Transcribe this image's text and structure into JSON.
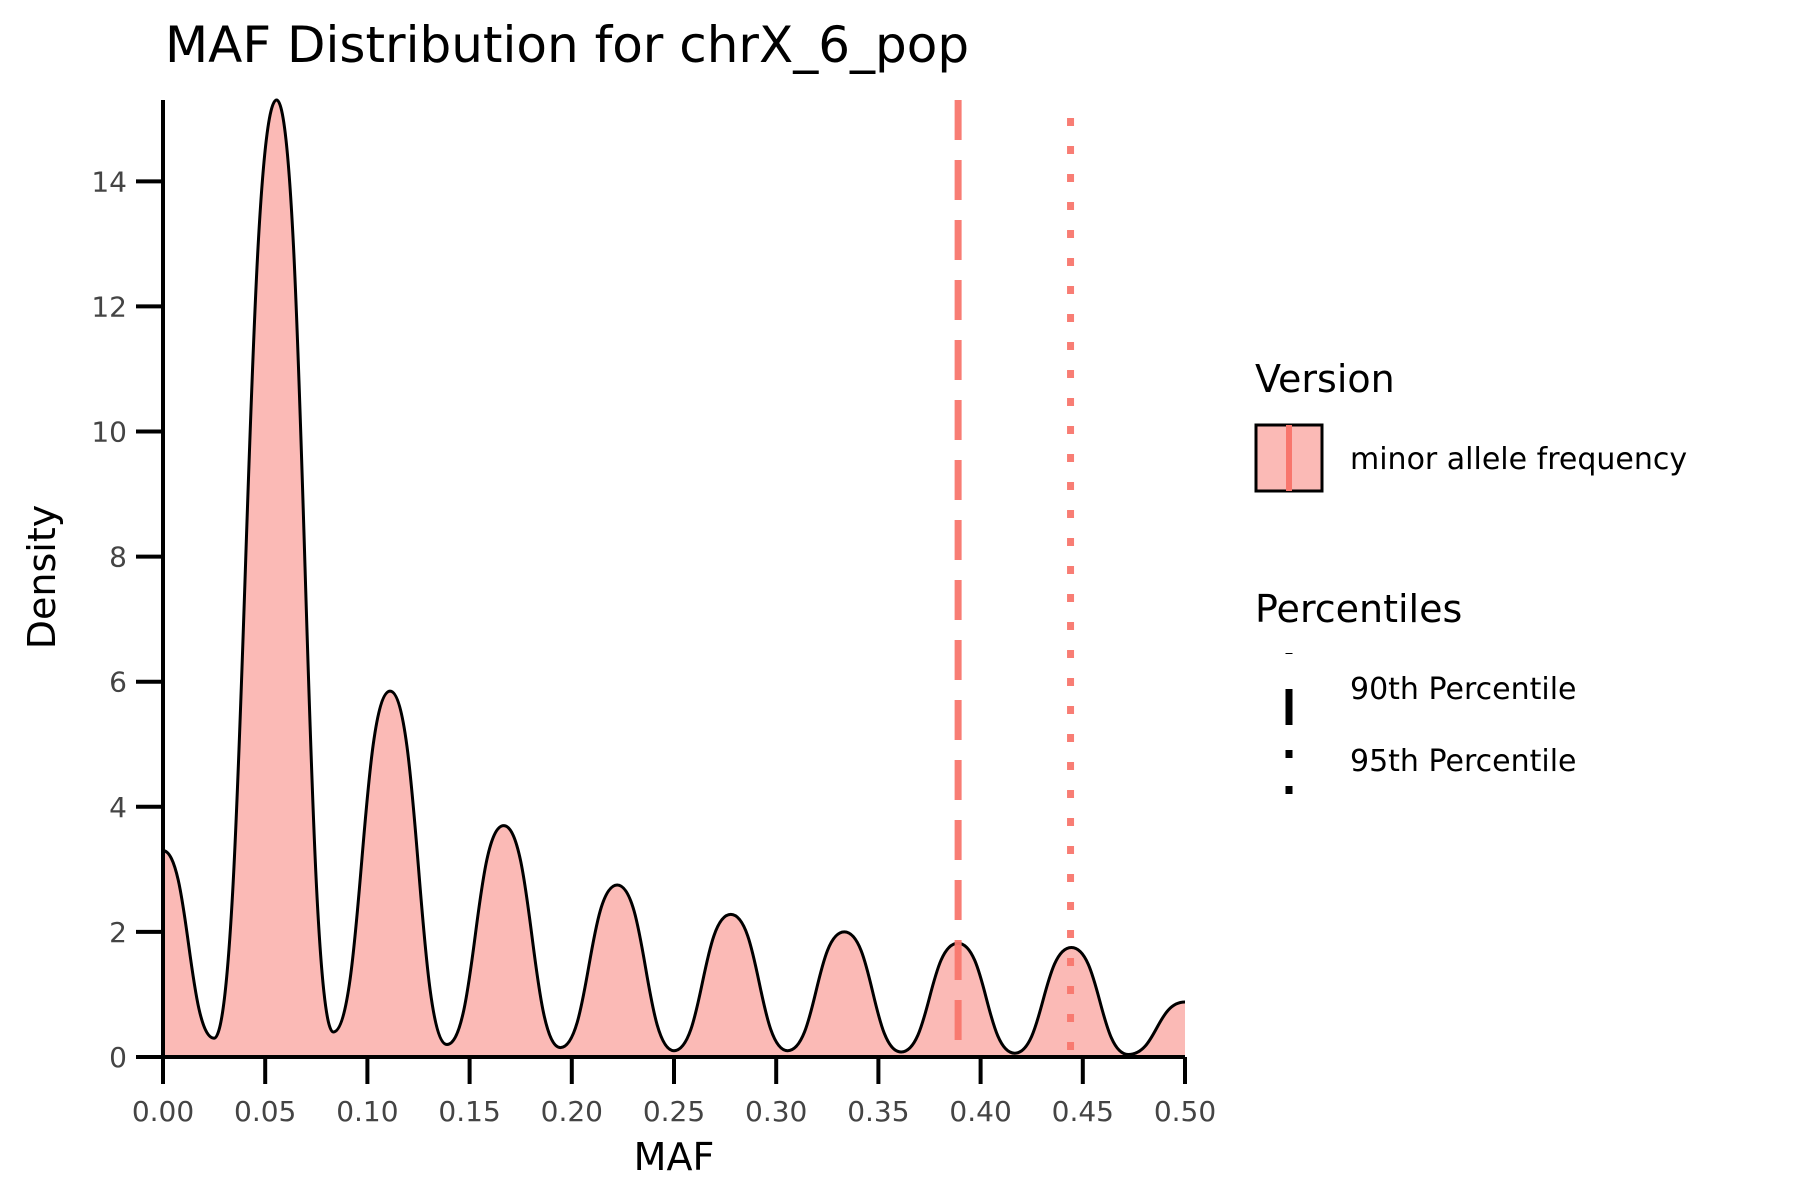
{
  "chart_data": {
    "type": "area",
    "title": "MAF Distribution for chrX_6_pop",
    "xlabel": "MAF",
    "ylabel": "Density",
    "xlim": [
      0,
      0.5
    ],
    "ylim": [
      0,
      15.3
    ],
    "x_ticks": [
      "0.00",
      "0.05",
      "0.10",
      "0.15",
      "0.20",
      "0.25",
      "0.30",
      "0.35",
      "0.40",
      "0.45",
      "0.50"
    ],
    "y_ticks": [
      "0",
      "2",
      "4",
      "6",
      "8",
      "10",
      "12",
      "14"
    ],
    "grid": false,
    "fill_color": "#F8766D",
    "line_color": "#000000",
    "series": [
      {
        "name": "minor allele frequency",
        "x": [
          0.0,
          0.025,
          0.0556,
          0.0833,
          0.1111,
          0.1389,
          0.1667,
          0.1944,
          0.2222,
          0.25,
          0.2778,
          0.3056,
          0.3333,
          0.3611,
          0.3889,
          0.4167,
          0.4444,
          0.4722,
          0.5
        ],
        "y": [
          3.3,
          0.3,
          15.3,
          0.4,
          5.85,
          0.2,
          3.7,
          0.15,
          2.75,
          0.1,
          2.28,
          0.1,
          2.0,
          0.08,
          1.82,
          0.06,
          1.75,
          0.04,
          0.88
        ]
      }
    ],
    "percentiles": [
      {
        "name": "90th Percentile",
        "value": 0.389,
        "style": "dashed",
        "color": "#F8766D"
      },
      {
        "name": "95th Percentile",
        "value": 0.444,
        "style": "dotted",
        "color": "#F8766D"
      }
    ],
    "legend": {
      "placement": "right",
      "version_title": "Version",
      "version_label": "minor allele frequency",
      "percentiles_title": "Percentiles",
      "p90_label": "90th Percentile",
      "p95_label": "95th Percentile"
    }
  }
}
